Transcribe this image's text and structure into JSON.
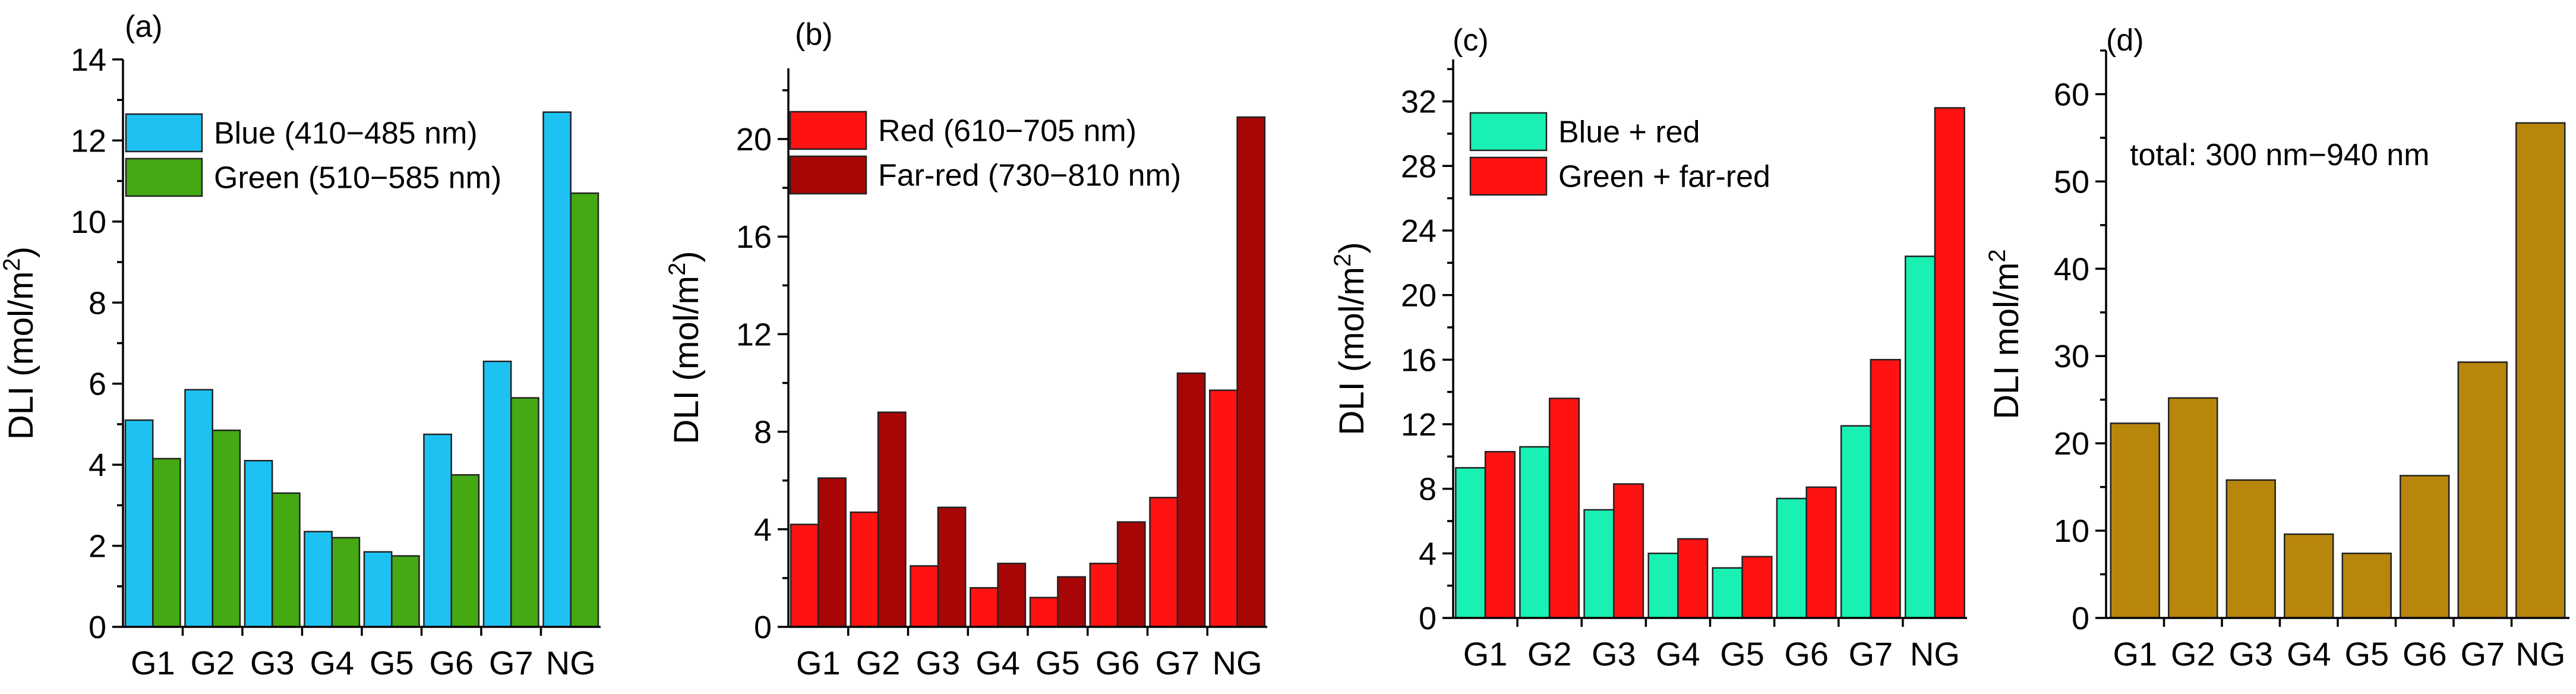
{
  "chart_data": [
    {
      "type": "bar",
      "panel_label": "(a)",
      "ylabel": "DLI (mol/m",
      "ylabel_sup": "2",
      "ylabel_close": ")",
      "ylim": [
        0,
        14
      ],
      "yticks": [
        0,
        2,
        4,
        6,
        8,
        10,
        12,
        14
      ],
      "categories": [
        "G1",
        "G2",
        "G3",
        "G4",
        "G5",
        "G6",
        "G7",
        "NG"
      ],
      "legend_position": "top-left",
      "series": [
        {
          "name": "Blue  (410−485 nm)",
          "color": "#1ec2f2",
          "values": [
            5.1,
            5.85,
            4.1,
            2.35,
            1.85,
            4.75,
            6.55,
            12.7
          ]
        },
        {
          "name": "Green  (510−585 nm)",
          "color": "#44a912",
          "values": [
            4.15,
            4.85,
            3.3,
            2.2,
            1.75,
            3.75,
            5.65,
            10.7
          ]
        }
      ]
    },
    {
      "type": "bar",
      "panel_label": "(b)",
      "ylabel": "DLI (mol/m",
      "ylabel_sup": "2",
      "ylabel_close": ")",
      "ylim": [
        0,
        22.9
      ],
      "yticks": [
        0,
        4,
        8,
        12,
        16,
        20
      ],
      "categories": [
        "G1",
        "G2",
        "G3",
        "G4",
        "G5",
        "G6",
        "G7",
        "NG"
      ],
      "legend_position": "top-left",
      "series": [
        {
          "name": "Red (610−705 nm)",
          "color": "#ff1212",
          "values": [
            4.2,
            4.7,
            2.5,
            1.6,
            1.2,
            2.6,
            5.3,
            9.7
          ]
        },
        {
          "name": "Far-red  (730−810 nm)",
          "color": "#a80606",
          "values": [
            6.1,
            8.8,
            4.9,
            2.6,
            2.05,
            4.3,
            10.4,
            20.9
          ]
        }
      ]
    },
    {
      "type": "bar",
      "panel_label": "(c)",
      "ylabel": "DLI (mol/m",
      "ylabel_sup": "2",
      "ylabel_close": ")",
      "ylim": [
        0,
        34.6
      ],
      "yticks": [
        0,
        4,
        8,
        12,
        16,
        20,
        24,
        28,
        32
      ],
      "categories": [
        "G1",
        "G2",
        "G3",
        "G4",
        "G5",
        "G6",
        "G7",
        "NG"
      ],
      "legend_position": "top-left",
      "series": [
        {
          "name": "Blue + red",
          "color": "#19f0b4",
          "values": [
            9.3,
            10.6,
            6.7,
            4.0,
            3.1,
            7.4,
            11.9,
            22.4
          ]
        },
        {
          "name": "Green + far-red",
          "color": "#ff1212",
          "values": [
            10.3,
            13.6,
            8.3,
            4.9,
            3.8,
            8.1,
            16.0,
            31.6
          ]
        }
      ]
    },
    {
      "type": "bar",
      "panel_label": "(d)",
      "ylabel": "DLI mol/m",
      "ylabel_sup": "2",
      "ylabel_close": "",
      "ylim": [
        0,
        65
      ],
      "yticks": [
        0,
        10,
        20,
        30,
        40,
        50,
        60
      ],
      "categories": [
        "G1",
        "G2",
        "G3",
        "G4",
        "G5",
        "G6",
        "G7",
        "NG"
      ],
      "annotation": "total: 300 nm−940 nm",
      "series": [
        {
          "name": "total",
          "color": "#b8860b",
          "values": [
            22.3,
            25.2,
            15.8,
            9.6,
            7.4,
            16.3,
            29.3,
            56.7
          ]
        }
      ]
    }
  ]
}
